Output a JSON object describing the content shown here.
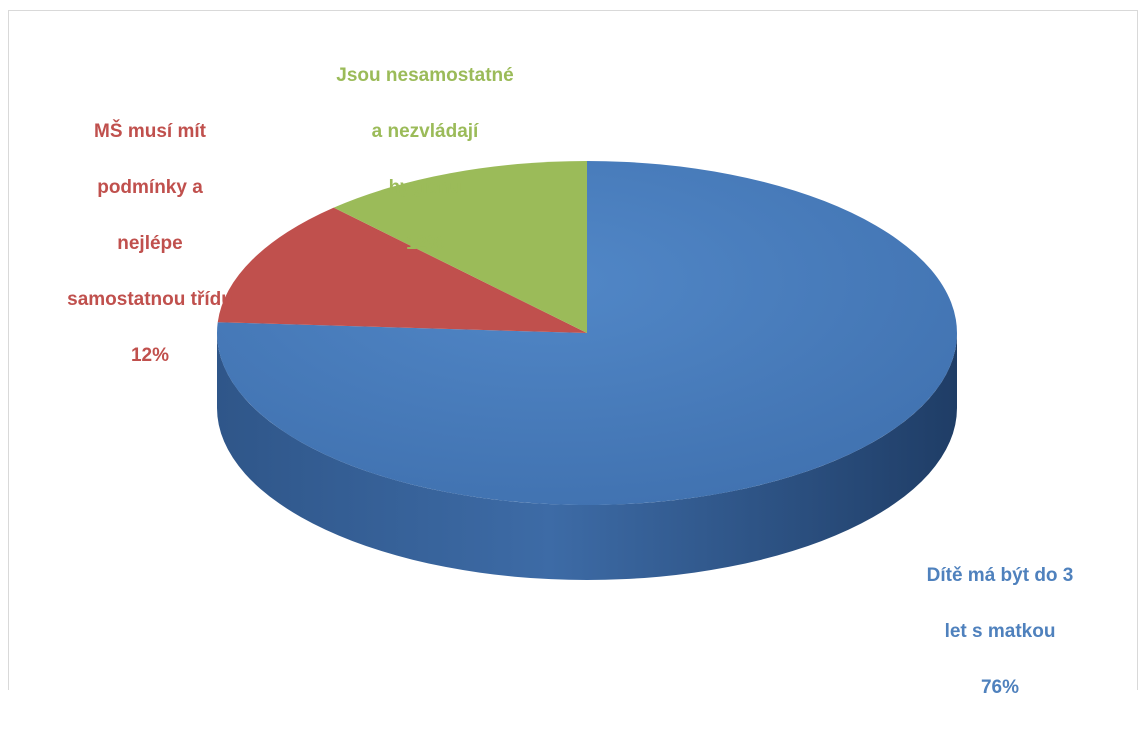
{
  "chart_data": {
    "type": "pie",
    "title": "",
    "style": "3d",
    "slices": [
      {
        "label": "Dítě má být do 3 let s matkou",
        "label_lines": [
          "Dítě má být do 3",
          "let s matkou"
        ],
        "value": 76,
        "value_label": "76%",
        "color": "#4f81bd",
        "label_color": "#4f81bd"
      },
      {
        "label": "MŠ musí mít podmínky a nejlépe samostatnou třídu",
        "label_lines": [
          "MŠ musí mít",
          "podmínky a",
          "nejlépe",
          "samostatnou třídu"
        ],
        "value": 12,
        "value_label": "12%",
        "color": "#c0504d",
        "label_color": "#c0504d"
      },
      {
        "label": "Jsou nesamostatné a nezvládají hygienu",
        "label_lines": [
          "Jsou nesamostatné",
          "a nezvládají",
          "hygienu"
        ],
        "value": 12,
        "value_label": "12%",
        "color": "#9bbb59",
        "label_color": "#9bbb59"
      }
    ]
  }
}
